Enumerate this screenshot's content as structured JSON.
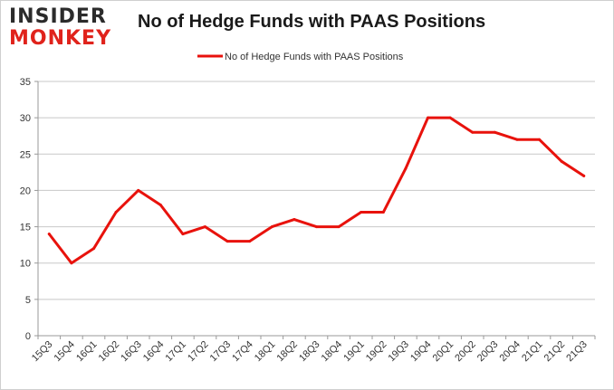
{
  "logo": {
    "line1": "INSIDER",
    "line2": "MONKEY"
  },
  "chart_data": {
    "type": "line",
    "title": "No of Hedge Funds with PAAS Positions",
    "xlabel": "",
    "ylabel": "",
    "categories": [
      "15Q3",
      "15Q4",
      "16Q1",
      "16Q2",
      "16Q3",
      "16Q4",
      "17Q1",
      "17Q2",
      "17Q3",
      "17Q4",
      "18Q1",
      "18Q2",
      "18Q3",
      "18Q4",
      "19Q1",
      "19Q2",
      "19Q3",
      "19Q4",
      "20Q1",
      "20Q2",
      "20Q3",
      "20Q4",
      "21Q1",
      "21Q2",
      "21Q3"
    ],
    "series": [
      {
        "name": "No of Hedge Funds with PAAS Positions",
        "color": "#e8120c",
        "values": [
          14,
          10,
          12,
          17,
          20,
          18,
          14,
          15,
          13,
          13,
          15,
          16,
          15,
          15,
          17,
          17,
          23,
          30,
          30,
          28,
          28,
          27,
          27,
          24,
          22
        ]
      }
    ],
    "ylim": [
      0,
      35
    ],
    "yticks": [
      0,
      5,
      10,
      15,
      20,
      25,
      30,
      35
    ],
    "grid": true,
    "legend": "top-center"
  }
}
